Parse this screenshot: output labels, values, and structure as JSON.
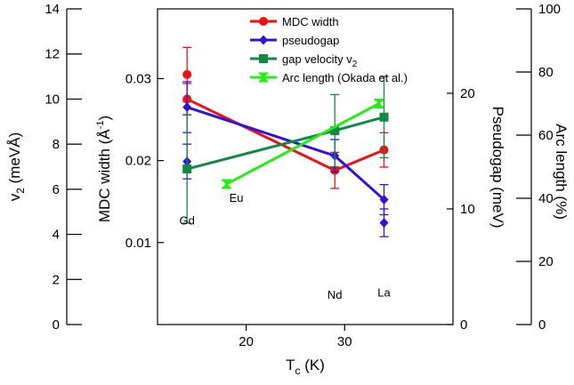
{
  "chart_data": {
    "type": "line",
    "xlabel": "T",
    "xlabel_sub": "c",
    "xlabel_unit": " (K)",
    "xlim": [
      11,
      41
    ],
    "x_ticks": [
      20,
      30
    ],
    "axes": {
      "v2": {
        "label": "v",
        "label_sub": "2",
        "label_unit": " (meVÅ)",
        "lim": [
          0,
          14
        ],
        "ticks": [
          0,
          2,
          4,
          6,
          8,
          10,
          12,
          14
        ]
      },
      "mdc": {
        "label": "MDC width (Å",
        "label_sup": "-1",
        "label_end": ")",
        "lim": [
          0.0,
          0.0385
        ],
        "ticks": [
          0.01,
          0.02,
          0.03
        ],
        "tick_labels": [
          "0.01",
          "0.02",
          "0.03"
        ]
      },
      "pseudogap": {
        "label": "Pseudogap (meV)",
        "lim": [
          0,
          27.3
        ],
        "ticks": [
          0,
          10,
          20
        ]
      },
      "arc": {
        "label": "Arc length (%)",
        "lim": [
          0,
          100
        ],
        "ticks": [
          0,
          20,
          40,
          60,
          80,
          100
        ]
      }
    },
    "legend_position": "top-center",
    "series": [
      {
        "name": "MDC width",
        "axis": "mdc",
        "color": "#ee1111",
        "marker": "circle",
        "x": [
          14,
          29,
          34
        ],
        "values": [
          0.0275,
          0.0188,
          0.0213
        ],
        "errors": [
          0.0019,
          0.0022,
          0.0021
        ]
      },
      {
        "name": "pseudogap",
        "axis": "pseudogap",
        "color": "#3311dd",
        "marker": "diamond",
        "x": [
          14,
          29,
          34
        ],
        "values": [
          18.8,
          14.6,
          10.8
        ],
        "errors": [
          2.2,
          1.4,
          1.3
        ]
      },
      {
        "name": "gap velocity v",
        "name_sub": "2",
        "axis": "v2",
        "color": "#118844",
        "marker": "square",
        "x": [
          14,
          29,
          34
        ],
        "values": [
          6.9,
          8.6,
          9.2
        ],
        "errors": [
          2.4,
          1.6,
          1.8
        ]
      },
      {
        "name": "Arc length (Okada et al.)",
        "axis": "arc",
        "color": "#22ee11",
        "marker": "bowtie",
        "x": [
          18,
          33.5
        ],
        "values": [
          44.5,
          70
        ],
        "errors": [
          1,
          1
        ]
      }
    ],
    "extra_points": [
      {
        "axis": "mdc",
        "x": 14,
        "value": 0.0305,
        "color": "#ee1111",
        "marker": "circle",
        "error": 0.0033
      },
      {
        "axis": "pseudogap",
        "x": 14,
        "value": 14.1,
        "color": "#3311dd",
        "marker": "diamond",
        "error": 1.5
      },
      {
        "axis": "pseudogap",
        "x": 34,
        "value": 8.8,
        "color": "#3311dd",
        "marker": "diamond",
        "error": 1.2
      }
    ],
    "annotations": [
      {
        "text": "Gd",
        "x": 14,
        "value": 4.6,
        "axis": "v2"
      },
      {
        "text": "Eu",
        "x": 19,
        "value": 5.6,
        "axis": "v2"
      },
      {
        "text": "Nd",
        "x": 29,
        "value": 1.3,
        "axis": "v2"
      },
      {
        "text": "La",
        "x": 34,
        "value": 1.4,
        "axis": "v2"
      }
    ]
  }
}
